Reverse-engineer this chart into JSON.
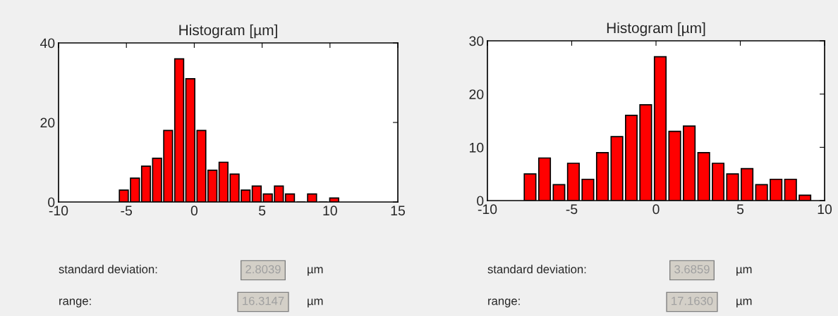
{
  "chart_data": [
    {
      "type": "histogram",
      "title": "Histogram [µm]",
      "color": "#ff0000",
      "bins": [
        -5.6,
        -4.78,
        -3.96,
        -3.15,
        -2.33,
        -1.52,
        -0.7,
        0.12,
        0.93,
        1.75,
        2.56,
        3.38,
        4.19,
        5.01,
        5.83,
        6.64,
        7.46,
        8.27,
        9.09,
        9.9,
        10.72
      ],
      "values": [
        3,
        6,
        9,
        11,
        18,
        36,
        31,
        18,
        8,
        10,
        7,
        3,
        4,
        2,
        4,
        2,
        0,
        2,
        0,
        1
      ],
      "xlim": [
        -10,
        15
      ],
      "xticks": [
        -10,
        -5,
        0,
        5,
        10,
        15
      ],
      "ylim": [
        0,
        40
      ],
      "yticks": [
        0,
        20,
        40
      ],
      "grid": false,
      "annotations": [
        "standard deviation:",
        "2.8039",
        "µm",
        "range:",
        "16.3147",
        "µm"
      ]
    },
    {
      "type": "histogram",
      "title": "Histogram [µm]",
      "color": "#ff0000",
      "bins": [
        -7.9,
        -7.04,
        -6.18,
        -5.33,
        -4.47,
        -3.61,
        -2.75,
        -1.89,
        -1.04,
        -0.18,
        0.68,
        1.54,
        2.4,
        3.26,
        4.11,
        4.97,
        5.83,
        6.69,
        7.55,
        8.41,
        9.26
      ],
      "values": [
        5,
        8,
        3,
        7,
        4,
        9,
        12,
        16,
        18,
        27,
        13,
        14,
        9,
        7,
        5,
        6,
        3,
        4,
        4,
        1
      ],
      "xlim": [
        -10,
        10
      ],
      "xticks": [
        -10,
        -5,
        0,
        5,
        10
      ],
      "ylim": [
        0,
        30
      ],
      "yticks": [
        0,
        10,
        20,
        30
      ],
      "grid": false,
      "annotations": [
        "standard deviation:",
        "3.6859",
        "µm",
        "range:",
        "17.1630",
        "µm"
      ]
    }
  ]
}
